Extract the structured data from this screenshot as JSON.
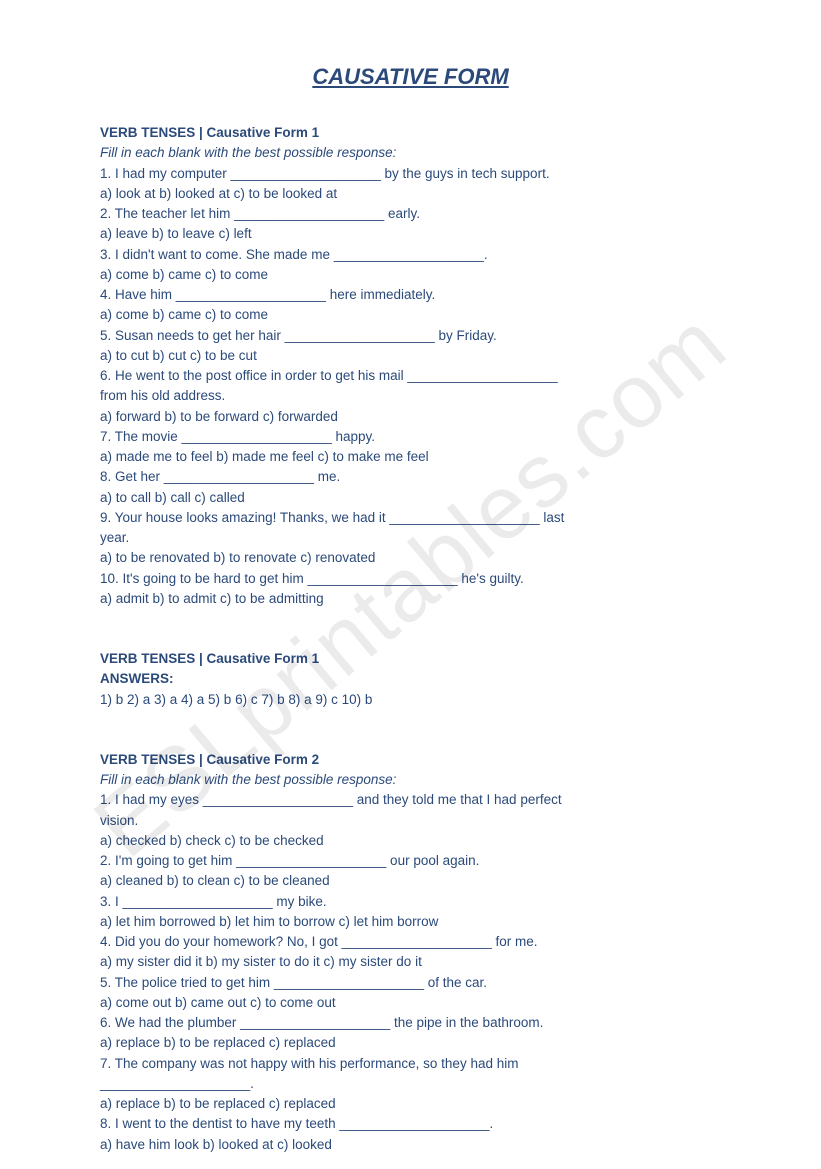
{
  "title": "CAUSATIVE FORM",
  "watermark": "ESLprintables.com",
  "blank": "____________________",
  "section1": {
    "header": "VERB TENSES | Causative Form 1",
    "instruction": "Fill in each blank with the best possible response:",
    "questions": [
      {
        "num": "1.",
        "before": "I had my computer ",
        "after": " by the guys in tech support.",
        "opts": "a) look at b) looked at c) to be looked at"
      },
      {
        "num": "2.",
        "before": "The teacher let him ",
        "after": " early.",
        "opts": "a) leave b) to leave c) left"
      },
      {
        "num": "3.",
        "before": "I didn't want to come. She made me ",
        "after": ".",
        "opts": "a) come b) came c) to come"
      },
      {
        "num": "4.",
        "before": "Have him ",
        "after": " here immediately.",
        "opts": "a) come b) came c) to come"
      },
      {
        "num": "5.",
        "before": "Susan needs to get her hair ",
        "after": " by Friday.",
        "opts": "a) to cut b) cut c) to be cut"
      },
      {
        "num": "6.",
        "before": "He went to the post office in order to get his mail ",
        "after": "",
        "cont": "from his old address.",
        "opts": "a) forward b) to be forward c) forwarded"
      },
      {
        "num": "7.",
        "before": "The movie ",
        "after": " happy.",
        "opts": "a) made me to feel b) made me feel c) to make me feel"
      },
      {
        "num": "8.",
        "before": "Get her ",
        "after": " me.",
        "opts": "a) to call b) call c) called"
      },
      {
        "num": "9.",
        "before": "Your house looks amazing! Thanks, we had it ",
        "after": " last",
        "cont": "year.",
        "opts": "a) to be renovated b) to renovate c) renovated"
      },
      {
        "num": "10.",
        "before": "It's going to be hard to get him ",
        "after": " he's guilty.",
        "opts": "a) admit b) to admit c) to be admitting"
      }
    ]
  },
  "answers1": {
    "header": "VERB TENSES | Causative Form 1",
    "label": "ANSWERS:",
    "line": "1) b 2) a 3) a 4) a 5) b 6) c 7) b 8) a 9) c 10) b"
  },
  "section2": {
    "header": "VERB TENSES | Causative Form 2",
    "instruction": "Fill in each blank with the best possible response:",
    "questions": [
      {
        "num": "1.",
        "before": "I had my eyes ",
        "after": " and they told me that I had perfect",
        "cont": "vision.",
        "opts": "a) checked b) check c) to be checked"
      },
      {
        "num": "2.",
        "before": "I'm going to get him ",
        "after": " our pool again.",
        "opts": "a) cleaned b) to clean c) to be cleaned"
      },
      {
        "num": "3.",
        "before": "I ",
        "after": " my bike.",
        "opts": "a) let him borrowed b) let him to borrow c) let him borrow"
      },
      {
        "num": "4.",
        "before": "Did you do your homework? No, I got ",
        "after": " for me.",
        "opts": "a) my sister did it b) my sister to do it c) my sister do it"
      },
      {
        "num": "5.",
        "before": "The police tried to get him ",
        "after": " of the car.",
        "opts": "a) come out b) came out c) to come out"
      },
      {
        "num": "6.",
        "before": "We had the plumber ",
        "after": " the pipe in the bathroom.",
        "opts": "a) replace b) to be replaced c) replaced"
      },
      {
        "num": "7.",
        "before": "The company was not happy with his performance, so they had him",
        "after": "",
        "contblank": true,
        "opts": "a) replace b) to be replaced c) replaced"
      },
      {
        "num": "8.",
        "before": "I went to the dentist to have my teeth ",
        "after": ".",
        "opts": "a) have him look b) looked at c) looked"
      }
    ]
  }
}
